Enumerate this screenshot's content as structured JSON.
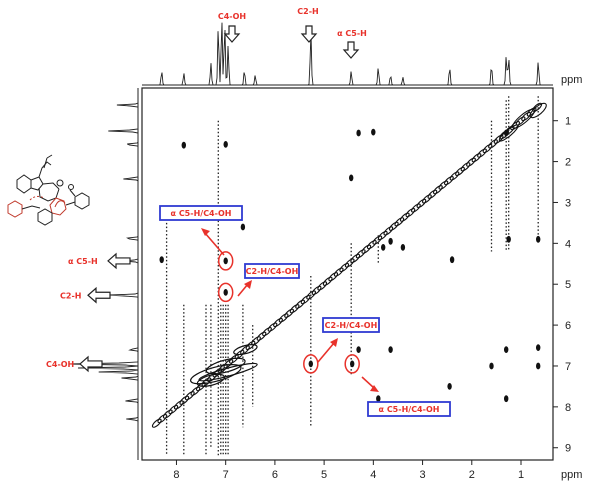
{
  "chart_data": {
    "type": "scatter",
    "title": "",
    "x_unit": "ppm",
    "y_unit": "ppm",
    "x_ticks": [
      "8",
      "7",
      "6",
      "5",
      "4",
      "3",
      "2",
      "1"
    ],
    "y_ticks": [
      "1",
      "2",
      "3",
      "4",
      "5",
      "6",
      "7",
      "8",
      "9"
    ],
    "xlim": [
      8.7,
      0.35
    ],
    "ylim": [
      0.2,
      9.3
    ],
    "top_peaks_ppm": [
      8.3,
      7.85,
      7.3,
      7.15,
      7.08,
      7.02,
      6.95,
      6.62,
      6.4,
      5.27,
      4.45,
      3.9,
      3.65,
      3.4,
      2.45,
      1.6,
      1.3,
      1.25,
      0.65
    ],
    "side_peaks_ppm": [
      0.62,
      1.25,
      1.58,
      2.42,
      3.88,
      4.43,
      5.27,
      6.6,
      6.95,
      7.05,
      7.15,
      7.3,
      7.85,
      8.3
    ],
    "cross_peaks": [
      {
        "x": 7.0,
        "y": 4.43,
        "circled": true
      },
      {
        "x": 7.0,
        "y": 5.2,
        "circled": true
      },
      {
        "x": 5.27,
        "y": 6.95,
        "circled": true
      },
      {
        "x": 4.43,
        "y": 6.95,
        "circled": true
      },
      {
        "x": 4.45,
        "y": 2.4
      },
      {
        "x": 7.0,
        "y": 1.58
      },
      {
        "x": 6.65,
        "y": 3.6
      },
      {
        "x": 4.3,
        "y": 1.3
      },
      {
        "x": 4.0,
        "y": 1.28
      },
      {
        "x": 3.8,
        "y": 4.1
      },
      {
        "x": 3.65,
        "y": 3.95
      },
      {
        "x": 3.4,
        "y": 4.1
      },
      {
        "x": 1.3,
        "y": 1.3
      },
      {
        "x": 1.25,
        "y": 3.9
      },
      {
        "x": 0.65,
        "y": 3.9
      },
      {
        "x": 2.4,
        "y": 4.4
      },
      {
        "x": 0.65,
        "y": 6.55
      },
      {
        "x": 1.3,
        "y": 6.6
      },
      {
        "x": 3.65,
        "y": 6.6
      },
      {
        "x": 4.3,
        "y": 6.6
      },
      {
        "x": 1.6,
        "y": 7.0
      },
      {
        "x": 0.65,
        "y": 7.0
      },
      {
        "x": 2.45,
        "y": 7.5
      },
      {
        "x": 1.3,
        "y": 7.8
      },
      {
        "x": 3.9,
        "y": 7.8
      },
      {
        "x": 8.3,
        "y": 4.4
      },
      {
        "x": 7.85,
        "y": 1.6
      }
    ],
    "top_annotations": [
      {
        "text": "C4-OH",
        "ppm": 6.98
      },
      {
        "text": "C2-H",
        "ppm": 5.27
      },
      {
        "text": "α C5-H",
        "ppm": 4.45
      }
    ],
    "side_annotations": [
      {
        "text": "α C5-H",
        "ppm": 4.43
      },
      {
        "text": "C2-H",
        "ppm": 5.27
      },
      {
        "text": "C4-OH",
        "ppm": 6.95
      }
    ],
    "boxed_labels": [
      "α C5-H/C4-OH",
      "C2-H/C4-OH",
      "C2-H/C4-OH",
      "α C5-H/C4-OH"
    ]
  }
}
